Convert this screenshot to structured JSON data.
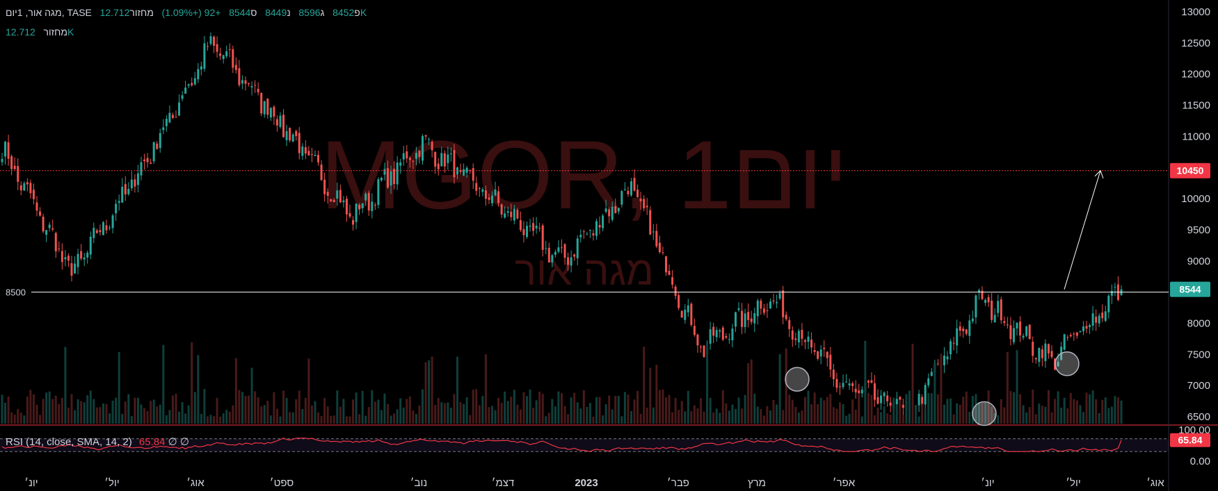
{
  "header": {
    "symbol": "מגה אור, 1יום, TASE",
    "open_label": "פ",
    "open": "8452",
    "high_label": "ג",
    "high": "8596",
    "low_label": "נ",
    "low": "8449",
    "close_label": "ס",
    "close": "8544",
    "change": "+92 (+1.09%)",
    "volume_label": "מחזור",
    "volume": "12.712K"
  },
  "volume_legend": {
    "label": "מחזור",
    "value": "12.712K"
  },
  "watermark": {
    "title": "MGOR, 1יום",
    "subtitle": "מגה אור"
  },
  "rsi_legend": {
    "label": "RSI (14, close, SMA, 14, 2)",
    "value": "65.84",
    "extra1": "∅",
    "extra2": "∅"
  },
  "price_labels": {
    "current": "8544",
    "target": "10450",
    "support_left": "8500"
  },
  "rsi_axis": {
    "top": "100.00",
    "bottom": "0.00",
    "current": "65.84"
  },
  "colors": {
    "up": "#26a69a",
    "down": "#ef5350",
    "target_line": "#f23645",
    "current_badge": "#26a69a",
    "rsi_line": "#f23645"
  },
  "chart_data": {
    "type": "candlestick",
    "y_ticks": [
      6500,
      7000,
      7500,
      8000,
      8500,
      9000,
      9500,
      10000,
      10500,
      11000,
      11500,
      12000,
      12500,
      13000
    ],
    "ylim": [
      6200,
      13050
    ],
    "x_labels": [
      "יונ׳",
      "יול׳",
      "אוג׳",
      "ספט׳",
      "נוב׳",
      "דצמ׳",
      "2023",
      "פבר׳",
      "מרץ",
      "אפר׳",
      "יונ׳",
      "יול׳",
      "אוג׳"
    ],
    "series_key_points": [
      {
        "period": "יונ׳",
        "close": 10800
      },
      {
        "period": "יול׳",
        "close": 8800
      },
      {
        "period": "יול׳",
        "close": 10500
      },
      {
        "period": "אוג׳",
        "close": 12500
      },
      {
        "period": "ספט׳",
        "close": 11200
      },
      {
        "period": "נוב׳",
        "close": 9700
      },
      {
        "period": "דצמ׳",
        "close": 10900
      },
      {
        "period": "2023",
        "close": 10000
      },
      {
        "period": "פבר׳",
        "close": 9000
      },
      {
        "period": "פבר׳",
        "close": 10200
      },
      {
        "period": "מרץ",
        "close": 7600
      },
      {
        "period": "אפר׳",
        "close": 8400
      },
      {
        "period": "אפר׳",
        "close": 7000
      },
      {
        "period": "יונ׳",
        "close": 6600
      },
      {
        "period": "יונ׳",
        "close": 8400
      },
      {
        "period": "יול׳",
        "close": 7400
      },
      {
        "period": "אוג׳",
        "close": 8544
      }
    ],
    "horizontal_lines": [
      {
        "price": 8500,
        "color": "#ffffff",
        "style": "solid"
      },
      {
        "price": 10450,
        "color": "#f23645",
        "style": "dotted"
      }
    ],
    "annotations": [
      {
        "type": "arrow",
        "from_price": 8544,
        "to_price": 10450
      },
      {
        "type": "circle",
        "price": 7100
      },
      {
        "type": "circle",
        "price": 6550
      },
      {
        "type": "circle",
        "price": 7350
      }
    ],
    "rsi": {
      "length": 14,
      "last": 65.84,
      "upper_band": 70,
      "lower_band": 30
    }
  }
}
